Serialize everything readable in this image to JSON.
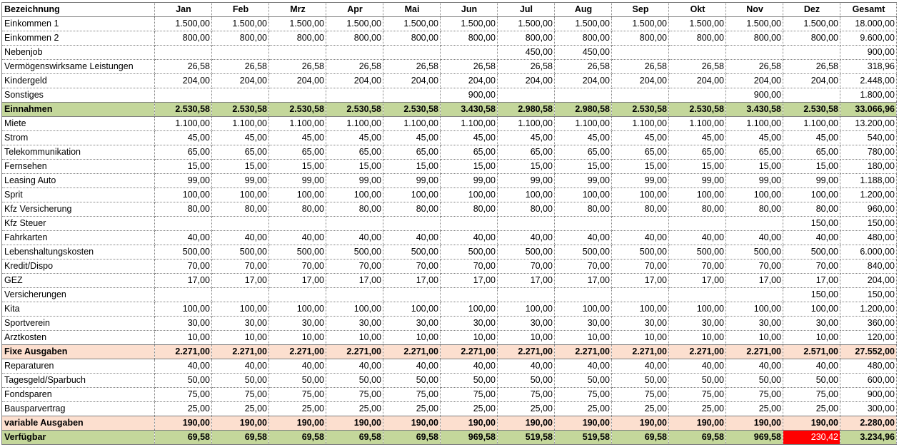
{
  "header": {
    "label": "Bezeichnung",
    "months": [
      "Jan",
      "Feb",
      "Mrz",
      "Apr",
      "Mai",
      "Jun",
      "Jul",
      "Aug",
      "Sep",
      "Okt",
      "Nov",
      "Dez"
    ],
    "total": "Gesamt"
  },
  "colors": {
    "income_total_bg": "#c4d79b",
    "expense_total_bg": "#fcdfcf",
    "negative_cell_bg": "#ff0000"
  },
  "rows": [
    {
      "label": "Einkommen 1",
      "style": "normal",
      "values": [
        "1.500,00",
        "1.500,00",
        "1.500,00",
        "1.500,00",
        "1.500,00",
        "1.500,00",
        "1.500,00",
        "1.500,00",
        "1.500,00",
        "1.500,00",
        "1.500,00",
        "1.500,00"
      ],
      "total": "18.000,00"
    },
    {
      "label": "Einkommen 2",
      "style": "normal",
      "values": [
        "800,00",
        "800,00",
        "800,00",
        "800,00",
        "800,00",
        "800,00",
        "800,00",
        "800,00",
        "800,00",
        "800,00",
        "800,00",
        "800,00"
      ],
      "total": "9.600,00"
    },
    {
      "label": "Nebenjob",
      "style": "normal",
      "values": [
        "",
        "",
        "",
        "",
        "",
        "",
        "450,00",
        "450,00",
        "",
        "",
        "",
        ""
      ],
      "total": "900,00"
    },
    {
      "label": "Vermögenswirksame Leistungen",
      "style": "normal",
      "values": [
        "26,58",
        "26,58",
        "26,58",
        "26,58",
        "26,58",
        "26,58",
        "26,58",
        "26,58",
        "26,58",
        "26,58",
        "26,58",
        "26,58"
      ],
      "total": "318,96"
    },
    {
      "label": "Kindergeld",
      "style": "normal",
      "values": [
        "204,00",
        "204,00",
        "204,00",
        "204,00",
        "204,00",
        "204,00",
        "204,00",
        "204,00",
        "204,00",
        "204,00",
        "204,00",
        "204,00"
      ],
      "total": "2.448,00"
    },
    {
      "label": "Sonstiges",
      "style": "normal",
      "values": [
        "",
        "",
        "",
        "",
        "",
        "900,00",
        "",
        "",
        "",
        "",
        "900,00",
        ""
      ],
      "total": "1.800,00"
    },
    {
      "label": "Einnahmen",
      "style": "green",
      "values": [
        "2.530,58",
        "2.530,58",
        "2.530,58",
        "2.530,58",
        "2.530,58",
        "3.430,58",
        "2.980,58",
        "2.980,58",
        "2.530,58",
        "2.530,58",
        "3.430,58",
        "2.530,58"
      ],
      "total": "33.066,96"
    },
    {
      "label": "Miete",
      "style": "normal",
      "values": [
        "1.100,00",
        "1.100,00",
        "1.100,00",
        "1.100,00",
        "1.100,00",
        "1.100,00",
        "1.100,00",
        "1.100,00",
        "1.100,00",
        "1.100,00",
        "1.100,00",
        "1.100,00"
      ],
      "total": "13.200,00"
    },
    {
      "label": "Strom",
      "style": "normal",
      "values": [
        "45,00",
        "45,00",
        "45,00",
        "45,00",
        "45,00",
        "45,00",
        "45,00",
        "45,00",
        "45,00",
        "45,00",
        "45,00",
        "45,00"
      ],
      "total": "540,00"
    },
    {
      "label": "Telekommunikation",
      "style": "normal",
      "values": [
        "65,00",
        "65,00",
        "65,00",
        "65,00",
        "65,00",
        "65,00",
        "65,00",
        "65,00",
        "65,00",
        "65,00",
        "65,00",
        "65,00"
      ],
      "total": "780,00"
    },
    {
      "label": "Fernsehen",
      "style": "normal",
      "values": [
        "15,00",
        "15,00",
        "15,00",
        "15,00",
        "15,00",
        "15,00",
        "15,00",
        "15,00",
        "15,00",
        "15,00",
        "15,00",
        "15,00"
      ],
      "total": "180,00"
    },
    {
      "label": "Leasing Auto",
      "style": "normal",
      "values": [
        "99,00",
        "99,00",
        "99,00",
        "99,00",
        "99,00",
        "99,00",
        "99,00",
        "99,00",
        "99,00",
        "99,00",
        "99,00",
        "99,00"
      ],
      "total": "1.188,00"
    },
    {
      "label": "Sprit",
      "style": "normal",
      "values": [
        "100,00",
        "100,00",
        "100,00",
        "100,00",
        "100,00",
        "100,00",
        "100,00",
        "100,00",
        "100,00",
        "100,00",
        "100,00",
        "100,00"
      ],
      "total": "1.200,00"
    },
    {
      "label": "Kfz Versicherung",
      "style": "normal",
      "values": [
        "80,00",
        "80,00",
        "80,00",
        "80,00",
        "80,00",
        "80,00",
        "80,00",
        "80,00",
        "80,00",
        "80,00",
        "80,00",
        "80,00"
      ],
      "total": "960,00"
    },
    {
      "label": "Kfz Steuer",
      "style": "normal",
      "values": [
        "",
        "",
        "",
        "",
        "",
        "",
        "",
        "",
        "",
        "",
        "",
        "150,00"
      ],
      "total": "150,00"
    },
    {
      "label": "Fahrkarten",
      "style": "normal",
      "values": [
        "40,00",
        "40,00",
        "40,00",
        "40,00",
        "40,00",
        "40,00",
        "40,00",
        "40,00",
        "40,00",
        "40,00",
        "40,00",
        "40,00"
      ],
      "total": "480,00"
    },
    {
      "label": "Lebenshaltungskosten",
      "style": "normal",
      "values": [
        "500,00",
        "500,00",
        "500,00",
        "500,00",
        "500,00",
        "500,00",
        "500,00",
        "500,00",
        "500,00",
        "500,00",
        "500,00",
        "500,00"
      ],
      "total": "6.000,00"
    },
    {
      "label": "Kredit/Dispo",
      "style": "normal",
      "values": [
        "70,00",
        "70,00",
        "70,00",
        "70,00",
        "70,00",
        "70,00",
        "70,00",
        "70,00",
        "70,00",
        "70,00",
        "70,00",
        "70,00"
      ],
      "total": "840,00"
    },
    {
      "label": "GEZ",
      "style": "normal",
      "values": [
        "17,00",
        "17,00",
        "17,00",
        "17,00",
        "17,00",
        "17,00",
        "17,00",
        "17,00",
        "17,00",
        "17,00",
        "17,00",
        "17,00"
      ],
      "total": "204,00"
    },
    {
      "label": "Versicherungen",
      "style": "normal",
      "values": [
        "",
        "",
        "",
        "",
        "",
        "",
        "",
        "",
        "",
        "",
        "",
        "150,00"
      ],
      "total": "150,00"
    },
    {
      "label": "Kita",
      "style": "normal",
      "values": [
        "100,00",
        "100,00",
        "100,00",
        "100,00",
        "100,00",
        "100,00",
        "100,00",
        "100,00",
        "100,00",
        "100,00",
        "100,00",
        "100,00"
      ],
      "total": "1.200,00"
    },
    {
      "label": "Sportverein",
      "style": "normal",
      "values": [
        "30,00",
        "30,00",
        "30,00",
        "30,00",
        "30,00",
        "30,00",
        "30,00",
        "30,00",
        "30,00",
        "30,00",
        "30,00",
        "30,00"
      ],
      "total": "360,00"
    },
    {
      "label": "Arztkosten",
      "style": "normal",
      "values": [
        "10,00",
        "10,00",
        "10,00",
        "10,00",
        "10,00",
        "10,00",
        "10,00",
        "10,00",
        "10,00",
        "10,00",
        "10,00",
        "10,00"
      ],
      "total": "120,00"
    },
    {
      "label": "Fixe Ausgaben",
      "style": "peach",
      "values": [
        "2.271,00",
        "2.271,00",
        "2.271,00",
        "2.271,00",
        "2.271,00",
        "2.271,00",
        "2.271,00",
        "2.271,00",
        "2.271,00",
        "2.271,00",
        "2.271,00",
        "2.571,00"
      ],
      "total": "27.552,00"
    },
    {
      "label": "Reparaturen",
      "style": "normal",
      "values": [
        "40,00",
        "40,00",
        "40,00",
        "40,00",
        "40,00",
        "40,00",
        "40,00",
        "40,00",
        "40,00",
        "40,00",
        "40,00",
        "40,00"
      ],
      "total": "480,00"
    },
    {
      "label": "Tagesgeld/Sparbuch",
      "style": "normal",
      "values": [
        "50,00",
        "50,00",
        "50,00",
        "50,00",
        "50,00",
        "50,00",
        "50,00",
        "50,00",
        "50,00",
        "50,00",
        "50,00",
        "50,00"
      ],
      "total": "600,00"
    },
    {
      "label": "Fondsparen",
      "style": "normal",
      "values": [
        "75,00",
        "75,00",
        "75,00",
        "75,00",
        "75,00",
        "75,00",
        "75,00",
        "75,00",
        "75,00",
        "75,00",
        "75,00",
        "75,00"
      ],
      "total": "900,00"
    },
    {
      "label": "Bausparvertrag",
      "style": "normal",
      "values": [
        "25,00",
        "25,00",
        "25,00",
        "25,00",
        "25,00",
        "25,00",
        "25,00",
        "25,00",
        "25,00",
        "25,00",
        "25,00",
        "25,00"
      ],
      "total": "300,00"
    },
    {
      "label": "variable Ausgaben",
      "style": "peach",
      "values": [
        "190,00",
        "190,00",
        "190,00",
        "190,00",
        "190,00",
        "190,00",
        "190,00",
        "190,00",
        "190,00",
        "190,00",
        "190,00",
        "190,00"
      ],
      "total": "2.280,00"
    },
    {
      "label": "Verfügbar",
      "style": "green",
      "values": [
        "69,58",
        "69,58",
        "69,58",
        "69,58",
        "69,58",
        "969,58",
        "519,58",
        "519,58",
        "69,58",
        "69,58",
        "969,58",
        "-230,42"
      ],
      "total": "3.234,96",
      "negative_months": [
        11
      ],
      "displayed_values_override": {
        "11": "230,42"
      }
    }
  ]
}
